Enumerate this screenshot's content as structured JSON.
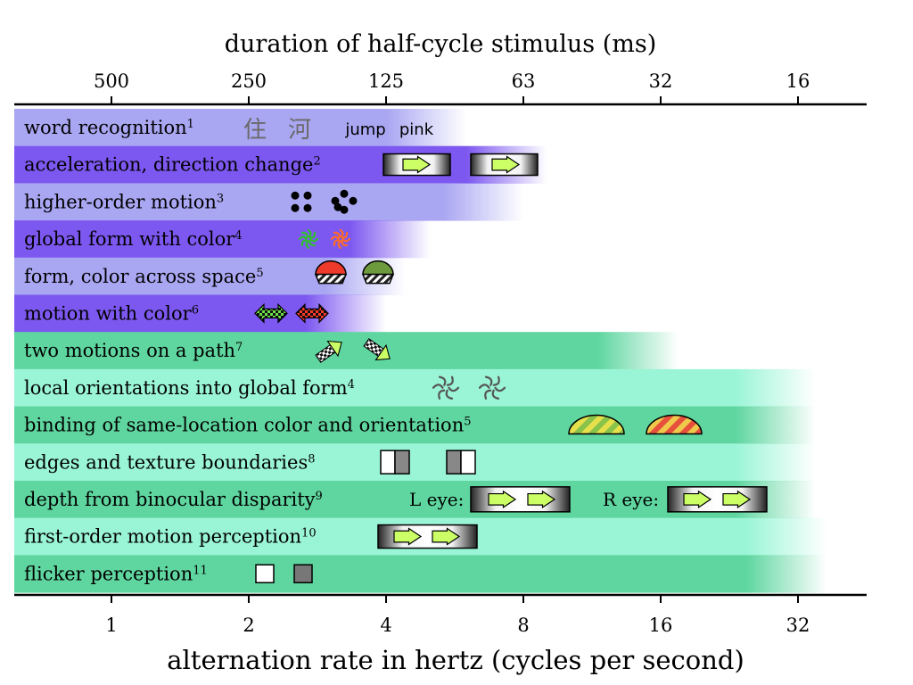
{
  "top_axis": {
    "title": "duration of  half-cycle stimulus (ms)",
    "ticks": [
      {
        "label": "500",
        "hz": 1
      },
      {
        "label": "250",
        "hz": 2
      },
      {
        "label": "125",
        "hz": 4
      },
      {
        "label": "63",
        "hz": 8
      },
      {
        "label": "32",
        "hz": 16
      },
      {
        "label": "16",
        "hz": 32
      }
    ]
  },
  "bottom_axis": {
    "title": "alternation rate in hertz (cycles per second)",
    "ticks": [
      {
        "label": "1",
        "hz": 1
      },
      {
        "label": "2",
        "hz": 2
      },
      {
        "label": "4",
        "hz": 4
      },
      {
        "label": "8",
        "hz": 8
      },
      {
        "label": "16",
        "hz": 16
      },
      {
        "label": "32",
        "hz": 32
      }
    ]
  },
  "colors": {
    "purple_light": "#a9a6f2",
    "purple_dark": "#7d58f0",
    "green_dark": "#5fd6a0",
    "green_light": "#9af5d6",
    "arrow_fill": "#ccff66"
  },
  "rows": [
    {
      "label": "word recognition",
      "ref": "1",
      "group": "purple",
      "shade": "light",
      "limit_hz": 6.0,
      "extras": [
        {
          "kind": "char",
          "text": "住"
        },
        {
          "kind": "char",
          "text": "河"
        },
        {
          "kind": "word",
          "text": "jump"
        },
        {
          "kind": "word",
          "text": "pink"
        }
      ]
    },
    {
      "label": "acceleration, direction change",
      "ref": "2",
      "group": "purple",
      "shade": "dark",
      "limit_hz": 9.0,
      "extras": []
    },
    {
      "label": "higher-order motion",
      "ref": "3",
      "group": "purple",
      "shade": "light",
      "limit_hz": 8.0,
      "extras": []
    },
    {
      "label": "global form with color",
      "ref": "4",
      "group": "purple",
      "shade": "dark",
      "limit_hz": 5.0,
      "extras": []
    },
    {
      "label": "form, color across space",
      "ref": "5",
      "group": "purple",
      "shade": "light",
      "limit_hz": 4.4,
      "extras": []
    },
    {
      "label": "motion with color",
      "ref": "6",
      "group": "purple",
      "shade": "dark",
      "limit_hz": 4.0,
      "extras": []
    },
    {
      "label": "two motions on a path",
      "ref": "7",
      "group": "green",
      "shade": "dark",
      "limit_hz": 17.5,
      "extras": []
    },
    {
      "label": "local orientations into global form",
      "ref": "4",
      "group": "green",
      "shade": "light",
      "limit_hz": 35,
      "extras": []
    },
    {
      "label": "binding of same-location color and orientation",
      "ref": "5",
      "group": "green",
      "shade": "dark",
      "limit_hz": 35,
      "extras": []
    },
    {
      "label": "edges and texture boundaries",
      "ref": "8",
      "group": "green",
      "shade": "light",
      "limit_hz": 35,
      "extras": []
    },
    {
      "label": "depth from binocular disparity",
      "ref": "9",
      "group": "green",
      "shade": "dark",
      "limit_hz": 35,
      "extras": [
        {
          "kind": "eye",
          "text": "L eye:"
        },
        {
          "kind": "eye",
          "text": "R eye:"
        }
      ]
    },
    {
      "label": "first-order motion perception",
      "ref": "10",
      "group": "green",
      "shade": "light",
      "limit_hz": 37,
      "extras": []
    },
    {
      "label": "flicker perception",
      "ref": "11",
      "group": "green",
      "shade": "dark",
      "limit_hz": 37,
      "extras": []
    }
  ]
}
